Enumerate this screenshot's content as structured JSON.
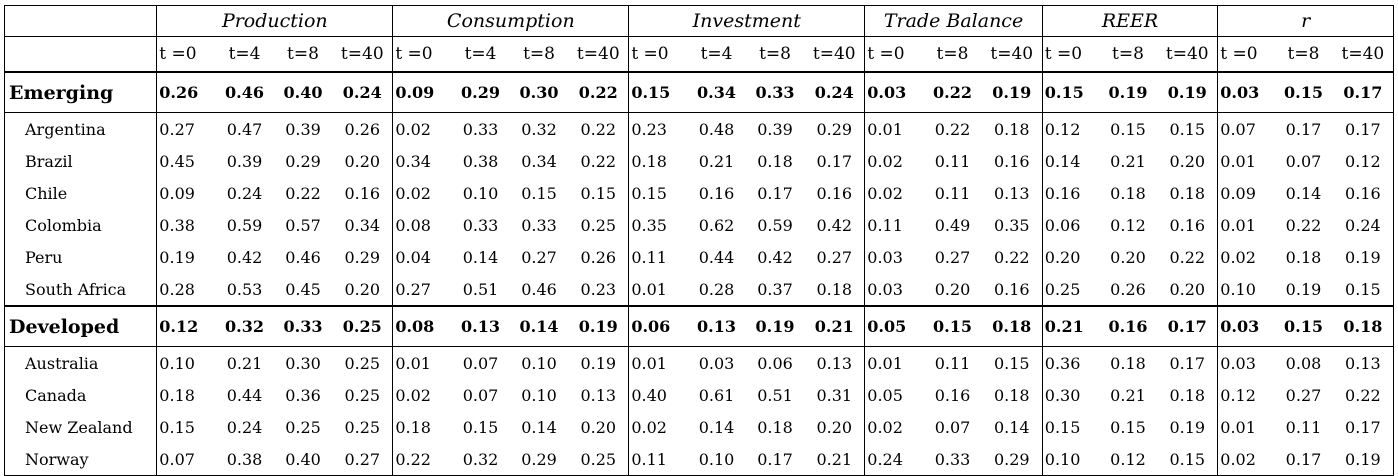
{
  "groups": [
    "Production",
    "Consumption",
    "Investment",
    "Trade Balance",
    "REER",
    "r"
  ],
  "subheaders": [
    [
      "t =0",
      "t=4",
      "t=8",
      "t=40"
    ],
    [
      "t =0",
      "t=4",
      "t=8",
      "t=40"
    ],
    [
      "t =0",
      "t=4",
      "t=8",
      "t=40"
    ],
    [
      "t =0",
      "t=8",
      "t=40"
    ],
    [
      "t =0",
      "t=8",
      "t=40"
    ],
    [
      "t =0",
      "t=8",
      "t=40"
    ]
  ],
  "rows": [
    {
      "kind": "group",
      "label": "Emerging",
      "values": [
        "0.26",
        "0.46",
        "0.40",
        "0.24",
        "0.09",
        "0.29",
        "0.30",
        "0.22",
        "0.15",
        "0.34",
        "0.33",
        "0.24",
        "0.03",
        "0.22",
        "0.19",
        "0.15",
        "0.19",
        "0.19",
        "0.03",
        "0.15",
        "0.17"
      ]
    },
    {
      "kind": "country",
      "label": "Argentina",
      "values": [
        "0.27",
        "0.47",
        "0.39",
        "0.26",
        "0.02",
        "0.33",
        "0.32",
        "0.22",
        "0.23",
        "0.48",
        "0.39",
        "0.29",
        "0.01",
        "0.22",
        "0.18",
        "0.12",
        "0.15",
        "0.15",
        "0.07",
        "0.17",
        "0.17"
      ]
    },
    {
      "kind": "country",
      "label": "Brazil",
      "values": [
        "0.45",
        "0.39",
        "0.29",
        "0.20",
        "0.34",
        "0.38",
        "0.34",
        "0.22",
        "0.18",
        "0.21",
        "0.18",
        "0.17",
        "0.02",
        "0.11",
        "0.16",
        "0.14",
        "0.21",
        "0.20",
        "0.01",
        "0.07",
        "0.12"
      ]
    },
    {
      "kind": "country",
      "label": "Chile",
      "values": [
        "0.09",
        "0.24",
        "0.22",
        "0.16",
        "0.02",
        "0.10",
        "0.15",
        "0.15",
        "0.15",
        "0.16",
        "0.17",
        "0.16",
        "0.02",
        "0.11",
        "0.13",
        "0.16",
        "0.18",
        "0.18",
        "0.09",
        "0.14",
        "0.16"
      ]
    },
    {
      "kind": "country",
      "label": "Colombia",
      "values": [
        "0.38",
        "0.59",
        "0.57",
        "0.34",
        "0.08",
        "0.33",
        "0.33",
        "0.25",
        "0.35",
        "0.62",
        "0.59",
        "0.42",
        "0.11",
        "0.49",
        "0.35",
        "0.06",
        "0.12",
        "0.16",
        "0.01",
        "0.22",
        "0.24"
      ]
    },
    {
      "kind": "country",
      "label": "Peru",
      "values": [
        "0.19",
        "0.42",
        "0.46",
        "0.29",
        "0.04",
        "0.14",
        "0.27",
        "0.26",
        "0.11",
        "0.44",
        "0.42",
        "0.27",
        "0.03",
        "0.27",
        "0.22",
        "0.20",
        "0.20",
        "0.22",
        "0.02",
        "0.18",
        "0.19"
      ]
    },
    {
      "kind": "country",
      "label": "South Africa",
      "values": [
        "0.28",
        "0.53",
        "0.45",
        "0.20",
        "0.27",
        "0.51",
        "0.46",
        "0.23",
        "0.01",
        "0.28",
        "0.37",
        "0.18",
        "0.03",
        "0.20",
        "0.16",
        "0.25",
        "0.26",
        "0.20",
        "0.10",
        "0.19",
        "0.15"
      ]
    },
    {
      "kind": "group",
      "label": "Developed",
      "values": [
        "0.12",
        "0.32",
        "0.33",
        "0.25",
        "0.08",
        "0.13",
        "0.14",
        "0.19",
        "0.06",
        "0.13",
        "0.19",
        "0.21",
        "0.05",
        "0.15",
        "0.18",
        "0.21",
        "0.16",
        "0.17",
        "0.03",
        "0.15",
        "0.18"
      ]
    },
    {
      "kind": "country",
      "label": "Australia",
      "values": [
        "0.10",
        "0.21",
        "0.30",
        "0.25",
        "0.01",
        "0.07",
        "0.10",
        "0.19",
        "0.01",
        "0.03",
        "0.06",
        "0.13",
        "0.01",
        "0.11",
        "0.15",
        "0.36",
        "0.18",
        "0.17",
        "0.03",
        "0.08",
        "0.13"
      ]
    },
    {
      "kind": "country",
      "label": "Canada",
      "values": [
        "0.18",
        "0.44",
        "0.36",
        "0.25",
        "0.02",
        "0.07",
        "0.10",
        "0.13",
        "0.40",
        "0.61",
        "0.51",
        "0.31",
        "0.05",
        "0.16",
        "0.18",
        "0.30",
        "0.21",
        "0.18",
        "0.12",
        "0.27",
        "0.22"
      ]
    },
    {
      "kind": "country",
      "label": "New Zealand",
      "values": [
        "0.15",
        "0.24",
        "0.25",
        "0.25",
        "0.18",
        "0.15",
        "0.14",
        "0.20",
        "0.02",
        "0.14",
        "0.18",
        "0.20",
        "0.02",
        "0.07",
        "0.14",
        "0.15",
        "0.15",
        "0.19",
        "0.01",
        "0.11",
        "0.17"
      ]
    },
    {
      "kind": "country",
      "label": "Norway",
      "values": [
        "0.07",
        "0.38",
        "0.40",
        "0.27",
        "0.22",
        "0.32",
        "0.29",
        "0.25",
        "0.11",
        "0.10",
        "0.17",
        "0.21",
        "0.24",
        "0.33",
        "0.29",
        "0.10",
        "0.12",
        "0.15",
        "0.02",
        "0.17",
        "0.19"
      ]
    }
  ]
}
